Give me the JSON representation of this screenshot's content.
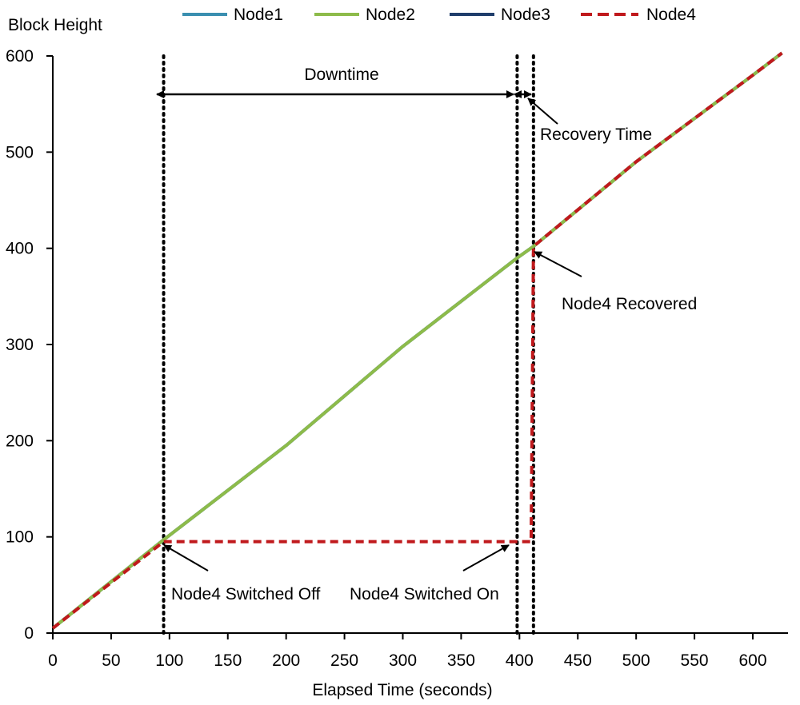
{
  "chart_data": {
    "type": "line",
    "xlabel": "Elapsed Time (seconds)",
    "ylabel": "Block Height",
    "xlim": [
      0,
      630
    ],
    "ylim": [
      0,
      600
    ],
    "x_ticks": [
      "0",
      "50",
      "100",
      "150",
      "200",
      "250",
      "300",
      "350",
      "400",
      "450",
      "500",
      "550",
      "600"
    ],
    "y_ticks": [
      "0",
      "100",
      "200",
      "300",
      "400",
      "500",
      "600"
    ],
    "grid": false,
    "legend_position": "top",
    "series": [
      {
        "name": "Node1",
        "color": "#3a8fb0",
        "style": "solid",
        "x": [
          0,
          95,
          200,
          300,
          398,
          412,
          500,
          600,
          625
        ],
        "y": [
          5,
          97,
          195,
          298,
          390,
          402,
          490,
          580,
          603
        ]
      },
      {
        "name": "Node2",
        "color": "#8dbb4a",
        "style": "solid",
        "x": [
          0,
          95,
          200,
          300,
          398,
          412,
          500,
          600,
          625
        ],
        "y": [
          5,
          97,
          195,
          298,
          390,
          402,
          490,
          580,
          603
        ]
      },
      {
        "name": "Node3",
        "color": "#1f3d6b",
        "style": "solid",
        "x": [
          0,
          95,
          200,
          300,
          398,
          412,
          500,
          600,
          625
        ],
        "y": [
          5,
          97,
          195,
          298,
          390,
          402,
          490,
          580,
          603
        ]
      },
      {
        "name": "Node4",
        "color": "#c0191c",
        "style": "dashed",
        "x": [
          0,
          95,
          398,
          410,
          412,
          500,
          600,
          625
        ],
        "y": [
          5,
          95,
          95,
          95,
          402,
          490,
          580,
          603
        ]
      }
    ],
    "vlines": [
      95,
      398,
      412
    ],
    "annotations": {
      "downtime": "Downtime",
      "recovery_time": "Recovery Time",
      "recovered": "Node4 Recovered",
      "switched_off": "Node4 Switched Off",
      "switched_on": "Node4 Switched On"
    }
  }
}
